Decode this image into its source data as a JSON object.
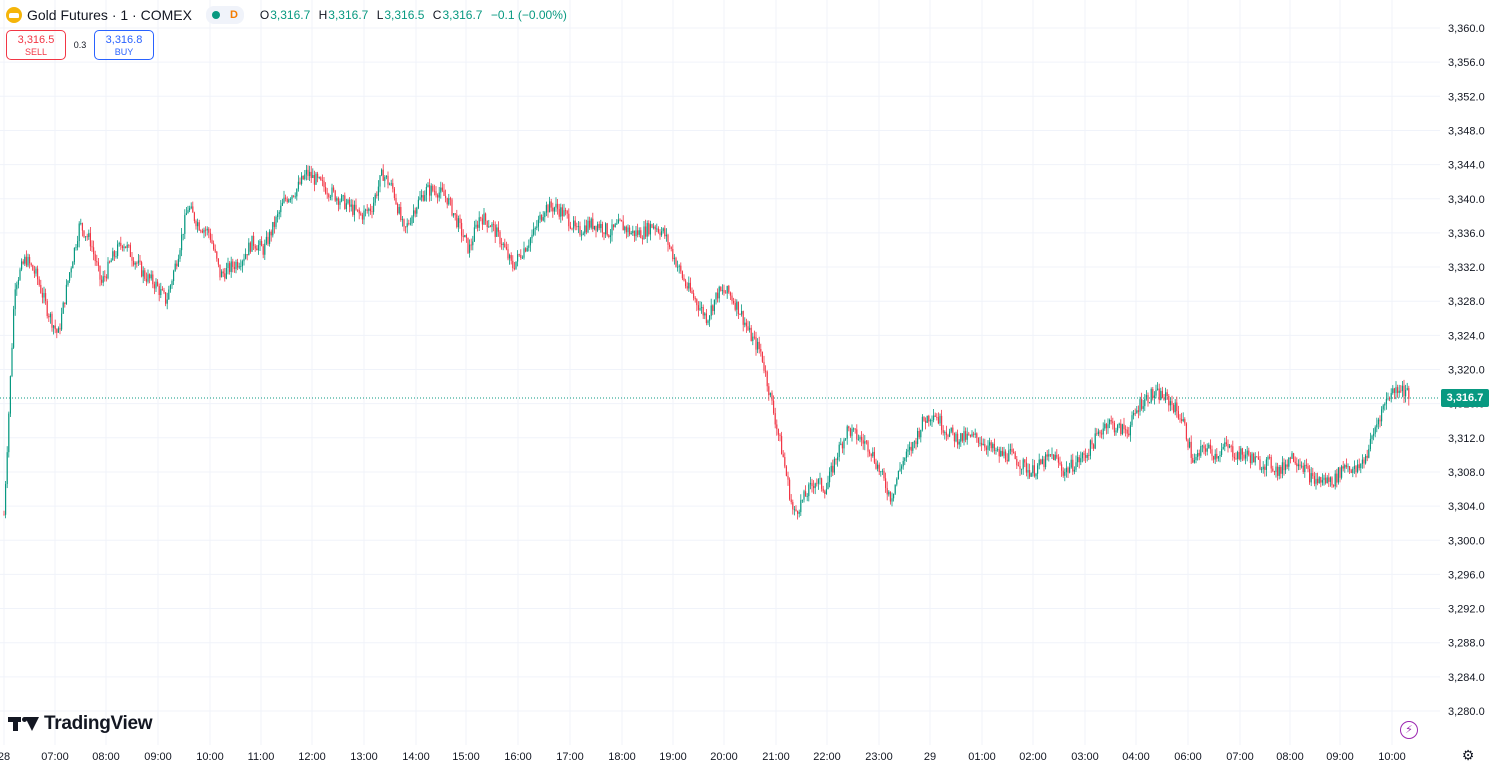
{
  "symbol": {
    "title": "Gold Futures · 1 · COMEX",
    "icon": "gold-bar-icon",
    "delay_badge": "D"
  },
  "ohlc": {
    "o_key": "O",
    "o": "3,316.7",
    "h_key": "H",
    "h": "3,316.7",
    "l_key": "L",
    "l": "3,316.5",
    "c_key": "C",
    "c": "3,316.7",
    "change": "−0.1 (−0.00%)"
  },
  "trade": {
    "sell_price": "3,316.5",
    "sell_label": "SELL",
    "spread": "0.3",
    "buy_price": "3,316.8",
    "buy_label": "BUY"
  },
  "brand": {
    "name": "TradingView"
  },
  "last_price_label": "3,316.7",
  "colors": {
    "up": "#089981",
    "down": "#f23645",
    "accent": "#2962ff"
  },
  "chart_data": {
    "type": "candlestick",
    "y_axis_ticks": [
      "3,360.0",
      "3,356.0",
      "3,352.0",
      "3,348.0",
      "3,344.0",
      "3,340.0",
      "3,336.0",
      "3,332.0",
      "3,328.0",
      "3,324.0",
      "3,320.0",
      "3,316.0",
      "3,312.0",
      "3,308.0",
      "3,304.0",
      "3,300.0",
      "3,296.0",
      "3,292.0",
      "3,288.0",
      "3,284.0",
      "3,280.0"
    ],
    "x_axis_ticks": [
      "28",
      "07:00",
      "08:00",
      "09:00",
      "10:00",
      "11:00",
      "12:00",
      "13:00",
      "14:00",
      "15:00",
      "16:00",
      "17:00",
      "18:00",
      "19:00",
      "20:00",
      "21:00",
      "22:00",
      "23:00",
      "29",
      "01:00",
      "02:00",
      "03:00",
      "04:00",
      "06:00",
      "07:00",
      "08:00",
      "09:00",
      "10:00"
    ],
    "ylim": [
      3278,
      3362
    ],
    "last_price": 3316.7,
    "price_path": [
      [
        0,
        3303
      ],
      [
        1,
        3330
      ],
      [
        2,
        3333
      ],
      [
        3,
        3331
      ],
      [
        4,
        3327
      ],
      [
        5,
        3324
      ],
      [
        6,
        3331
      ],
      [
        7,
        3337
      ],
      [
        8,
        3335
      ],
      [
        9,
        3330
      ],
      [
        10,
        3333
      ],
      [
        11,
        3335
      ],
      [
        12,
        3333
      ],
      [
        13,
        3331
      ],
      [
        14,
        3330
      ],
      [
        15,
        3328
      ],
      [
        16,
        3333
      ],
      [
        17,
        3339
      ],
      [
        18,
        3337
      ],
      [
        19,
        3336
      ],
      [
        20,
        3331
      ],
      [
        21,
        3332
      ],
      [
        22,
        3333
      ],
      [
        23,
        3335
      ],
      [
        24,
        3334
      ],
      [
        25,
        3337
      ],
      [
        26,
        3340
      ],
      [
        27,
        3341
      ],
      [
        28,
        3343
      ],
      [
        29,
        3342
      ],
      [
        30,
        3341
      ],
      [
        31,
        3340
      ],
      [
        32,
        3339
      ],
      [
        33,
        3338
      ],
      [
        34,
        3339
      ],
      [
        35,
        3343
      ],
      [
        36,
        3341
      ],
      [
        37,
        3336
      ],
      [
        38,
        3339
      ],
      [
        39,
        3341
      ],
      [
        40,
        3341
      ],
      [
        41,
        3340
      ],
      [
        42,
        3337
      ],
      [
        43,
        3334
      ],
      [
        44,
        3338
      ],
      [
        45,
        3337
      ],
      [
        46,
        3335
      ],
      [
        47,
        3332
      ],
      [
        48,
        3334
      ],
      [
        49,
        3336
      ],
      [
        50,
        3339
      ],
      [
        51,
        3339
      ],
      [
        52,
        3338
      ],
      [
        53,
        3336
      ],
      [
        54,
        3337
      ],
      [
        55,
        3337
      ],
      [
        56,
        3336
      ],
      [
        57,
        3337
      ],
      [
        58,
        3336
      ],
      [
        59,
        3336
      ],
      [
        60,
        3337
      ],
      [
        61,
        3336
      ],
      [
        62,
        3333
      ],
      [
        63,
        3330
      ],
      [
        64,
        3328
      ],
      [
        65,
        3326
      ],
      [
        66,
        3329
      ],
      [
        67,
        3329
      ],
      [
        68,
        3327
      ],
      [
        69,
        3324
      ],
      [
        70,
        3322
      ],
      [
        71,
        3316
      ],
      [
        72,
        3310
      ],
      [
        73,
        3303
      ],
      [
        74,
        3305
      ],
      [
        75,
        3307
      ],
      [
        76,
        3306
      ],
      [
        77,
        3310
      ],
      [
        78,
        3313
      ],
      [
        79,
        3312
      ],
      [
        80,
        3311
      ],
      [
        81,
        3308
      ],
      [
        82,
        3305
      ],
      [
        83,
        3309
      ],
      [
        84,
        3311
      ],
      [
        85,
        3314
      ],
      [
        86,
        3315
      ],
      [
        87,
        3313
      ],
      [
        88,
        3312
      ],
      [
        89,
        3312
      ],
      [
        90,
        3312
      ],
      [
        91,
        3311
      ],
      [
        92,
        3310
      ],
      [
        93,
        3310
      ],
      [
        94,
        3309
      ],
      [
        95,
        3308
      ],
      [
        96,
        3309
      ],
      [
        97,
        3310
      ],
      [
        98,
        3308
      ],
      [
        99,
        3309
      ],
      [
        100,
        3310
      ],
      [
        101,
        3312
      ],
      [
        102,
        3314
      ],
      [
        103,
        3313
      ],
      [
        104,
        3313
      ],
      [
        105,
        3316
      ],
      [
        106,
        3317
      ],
      [
        107,
        3317
      ],
      [
        108,
        3316
      ],
      [
        109,
        3314
      ],
      [
        110,
        3309
      ],
      [
        111,
        3311
      ],
      [
        112,
        3310
      ],
      [
        113,
        3311
      ],
      [
        114,
        3310
      ],
      [
        115,
        3310
      ],
      [
        116,
        3309
      ],
      [
        117,
        3309
      ],
      [
        118,
        3308
      ],
      [
        119,
        3310
      ],
      [
        120,
        3309
      ],
      [
        121,
        3307
      ],
      [
        122,
        3307
      ],
      [
        123,
        3307
      ],
      [
        124,
        3309
      ],
      [
        125,
        3308
      ],
      [
        126,
        3310
      ],
      [
        127,
        3314
      ],
      [
        128,
        3317
      ],
      [
        129,
        3318
      ],
      [
        130,
        3317
      ]
    ]
  }
}
